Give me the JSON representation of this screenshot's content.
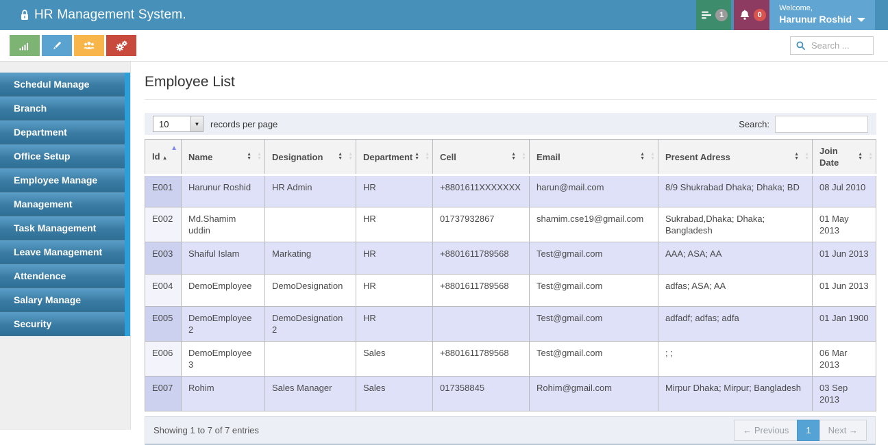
{
  "header": {
    "title": "HR Management System.",
    "messages_badge": "1",
    "notifications_badge": "0",
    "welcome_line1": "Welcome,",
    "welcome_line2": "Harunur Roshid"
  },
  "topbar": {
    "search_placeholder": "Search ..."
  },
  "icons": [
    "lock-icon",
    "list-icon",
    "bell-icon",
    "caret-down-icon",
    "bar-chart-icon",
    "pencil-icon",
    "users-icon",
    "gears-icon",
    "search-icon"
  ],
  "sidebar": {
    "items": [
      {
        "label": "Schedul Manage"
      },
      {
        "label": "Branch"
      },
      {
        "label": "Department"
      },
      {
        "label": "Office Setup"
      },
      {
        "label": "Employee Manage"
      },
      {
        "label": "Management"
      },
      {
        "label": "Task Management"
      },
      {
        "label": "Leave Management"
      },
      {
        "label": "Attendence"
      },
      {
        "label": "Salary Manage"
      },
      {
        "label": "Security"
      }
    ]
  },
  "main": {
    "page_title": "Employee List",
    "toolbar": {
      "records_value": "10",
      "records_label": "records per page",
      "search_label": "Search:",
      "search_value": ""
    },
    "table": {
      "columns": [
        {
          "label": "Id",
          "sort": "asc"
        },
        {
          "label": "Name",
          "sort": "both"
        },
        {
          "label": "Designation",
          "sort": "both"
        },
        {
          "label": "Department",
          "sort": "both"
        },
        {
          "label": "Cell",
          "sort": "both"
        },
        {
          "label": "Email",
          "sort": "both"
        },
        {
          "label": "Present Adress",
          "sort": "both"
        },
        {
          "label": "Join Date",
          "sort": "both"
        }
      ],
      "rows": [
        [
          "E001",
          "Harunur Roshid",
          "HR Admin",
          "HR",
          "+8801611XXXXXXX",
          "harun@mail.com",
          "8/9 Shukrabad Dhaka; Dhaka; BD",
          "08 Jul 2010"
        ],
        [
          "E002",
          "Md.Shamim uddin",
          "",
          "HR",
          "01737932867",
          "shamim.cse19@gmail.com",
          "Sukrabad,Dhaka; Dhaka; Bangladesh",
          "01 May 2013"
        ],
        [
          "E003",
          "Shaiful Islam",
          "Markating",
          "HR",
          "+8801611789568",
          "Test@gmail.com",
          "AAA; ASA; AA",
          "01 Jun 2013"
        ],
        [
          "E004",
          "DemoEmployee",
          "DemoDesignation",
          "HR",
          "+8801611789568",
          "Test@gmail.com",
          "adfas; ASA; AA",
          "01 Jun 2013"
        ],
        [
          "E005",
          "DemoEmployee 2",
          "DemoDesignation 2",
          "HR",
          "",
          "Test@gmail.com",
          "adfadf; adfas; adfa",
          "01 Jan 1900"
        ],
        [
          "E006",
          "DemoEmployee 3",
          "",
          "Sales",
          "+8801611789568",
          "Test@gmail.com",
          "; ;",
          "06 Mar 2013"
        ],
        [
          "E007",
          "Rohim",
          "Sales Manager",
          "Sales",
          "017358845",
          "Rohim@gmail.com",
          "Mirpur Dhaka; Mirpur; Bangladesh",
          "03 Sep 2013"
        ]
      ]
    },
    "footer": {
      "summary": "Showing 1 to 7 of 7 entries",
      "prev": "← Previous",
      "page": "1",
      "next": "Next →"
    }
  },
  "colors": {
    "header-bar": "#4690ba",
    "welcome-box": "#61a5d2",
    "messages-box": "#3d8d6c",
    "notifications-box": "#8e3b62",
    "badge-gray": "#9b9b9b",
    "badge-red": "#d9534f",
    "menu-top": "#5b9fc8",
    "menu-bottom": "#2e6f96",
    "menu-accent": "#2d9fd8",
    "sidebar-bg": "#f0eff0",
    "btn-chart": "#7db474",
    "btn-edit": "#5aa2d0",
    "btn-users": "#f7b54a",
    "btn-gears": "#c74a3c",
    "row-odd": "#dfe1f9",
    "row-odd-id": "#ccd1f0",
    "row-even": "#ffffff",
    "row-even-id": "#f2f3fb",
    "table-border": "#b9babd",
    "head-bg": "#f3f3f3",
    "strip-bg": "#eceff5",
    "page-active": "#54a3d4",
    "sort-active": "#8286ee"
  }
}
